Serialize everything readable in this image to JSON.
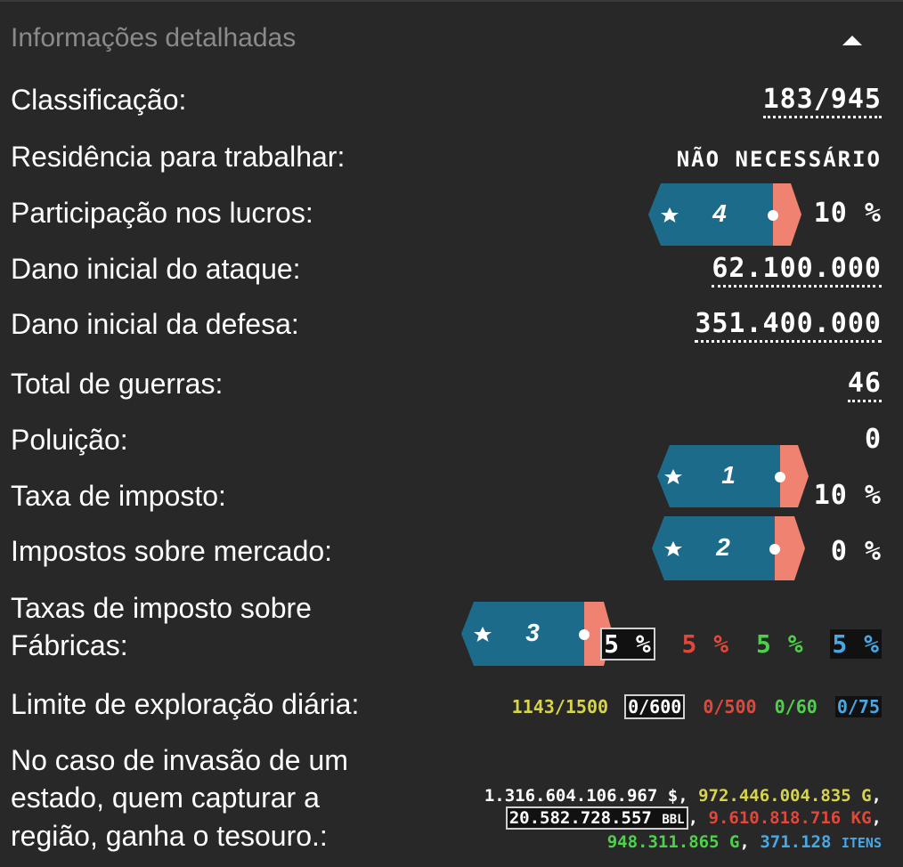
{
  "header": {
    "title": "Informações detalhadas",
    "collapse_icon": "caret-up-icon"
  },
  "rows": {
    "classificacao": {
      "label": "Classificação:",
      "value": "183/945"
    },
    "residencia": {
      "label": "Residência para trabalhar:",
      "value": "NÃO NECESSÁRIO"
    },
    "participacao": {
      "label": "Participação nos lucros:",
      "level": "4",
      "value": "10 %"
    },
    "dano_ataque": {
      "label": "Dano inicial do ataque:",
      "value": "62.100.000"
    },
    "dano_defesa": {
      "label": "Dano inicial da defesa:",
      "value": "351.400.000"
    },
    "guerras": {
      "label": "Total de guerras:",
      "value": "46"
    },
    "poluicao": {
      "label": "Poluição:",
      "value": "0"
    },
    "taxa_imposto": {
      "label": "Taxa de imposto:",
      "level": "1",
      "value": "10 %"
    },
    "impostos_mercado": {
      "label": "Impostos sobre mercado:",
      "level": "2",
      "value": "0 %"
    },
    "fabricas": {
      "label_line1": "Taxas de imposto sobre",
      "label_line2": "Fábricas:",
      "level": "3",
      "values": [
        "5 %",
        "5 %",
        "5 %",
        "5 %"
      ]
    },
    "exploracao": {
      "label": "Limite de exploração diária:",
      "values": [
        "1143/1500",
        "0/600",
        "0/500",
        "0/60",
        "0/75"
      ]
    },
    "tesouro": {
      "label_line1": "No caso de invasão de um",
      "label_line2": "estado, quem capturar a",
      "label_line3": "região, ganha o tesouro.:",
      "money": "1.316.604.106.967 $",
      "gold": "972.446.004.835 G",
      "oil": "20.582.728.557",
      "oil_unit": "BBL",
      "ore": "9.610.818.716 KG",
      "uranium": "948.311.865 G",
      "items": "371.128",
      "items_unit": "ITENS"
    }
  },
  "colors": {
    "background": "#282828",
    "level_badge": "#1d6b8a",
    "level_accent": "#f08272",
    "yellow": "#d6d44a",
    "red": "#e0493a",
    "green": "#4ed14a",
    "blue": "#48a8e6"
  }
}
